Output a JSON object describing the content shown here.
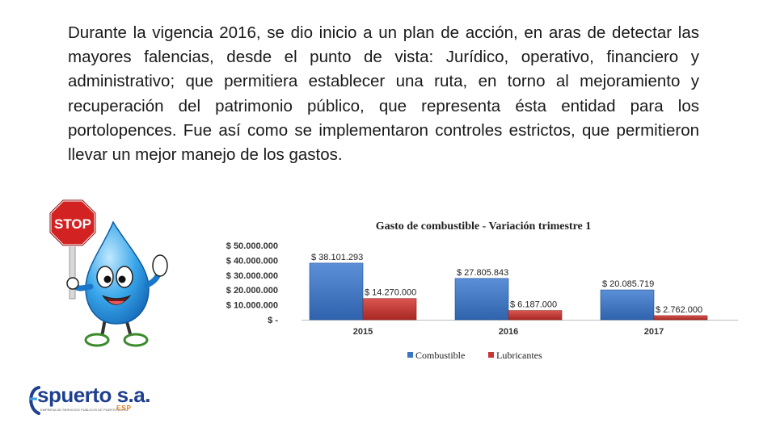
{
  "paragraph": "Durante la vigencia 2016, se dio inicio a un plan de acción, en aras de detectar las mayores falencias, desde el punto de vista: Jurídico, operativo, financiero y administrativo; que permitiera establecer una ruta, en torno al mejoramiento y recuperación del patrimonio público, que representa ésta entidad para los portolopences. Fue así como se implementaron controles estrictos, que permitieron llevar un mejor manejo de los gastos.",
  "mascot": {
    "sign_text": "STOP",
    "icon": "water-drop-mascot-stop-sign-icon"
  },
  "logo": {
    "text": "spuerto s.a.",
    "suffix": "ESP",
    "tagline": "EMPRESA DE SERVICIOS PUBLICOS DE PUERTO LOPEZ",
    "icon": "espuerto-logo-icon"
  },
  "chart_data": {
    "type": "bar",
    "title": "Gasto de combustible - Variación trimestre 1",
    "categories": [
      "2015",
      "2016",
      "2017"
    ],
    "series": [
      {
        "name": "Combustible",
        "values": [
          38101293,
          27805843,
          20085719
        ],
        "labels": [
          "$ 38.101.293",
          "$ 27.805.843",
          "$ 20.085.719"
        ],
        "color": "#3b74c4"
      },
      {
        "name": "Lubricantes",
        "values": [
          14270000,
          6187000,
          2762000
        ],
        "labels": [
          "$ 14.270.000",
          "$ 6.187.000",
          "$ 2.762.000"
        ],
        "color": "#c83632"
      }
    ],
    "ylim": [
      0,
      50000000
    ],
    "yticks": [
      0,
      10000000,
      20000000,
      30000000,
      40000000,
      50000000
    ],
    "ytick_labels": [
      "$ -",
      "$ 10.000.000",
      "$ 20.000.000",
      "$ 30.000.000",
      "$ 40.000.000",
      "$ 50.000.000"
    ],
    "xlabel": "",
    "ylabel": "",
    "grid": false,
    "legend_position": "bottom"
  }
}
